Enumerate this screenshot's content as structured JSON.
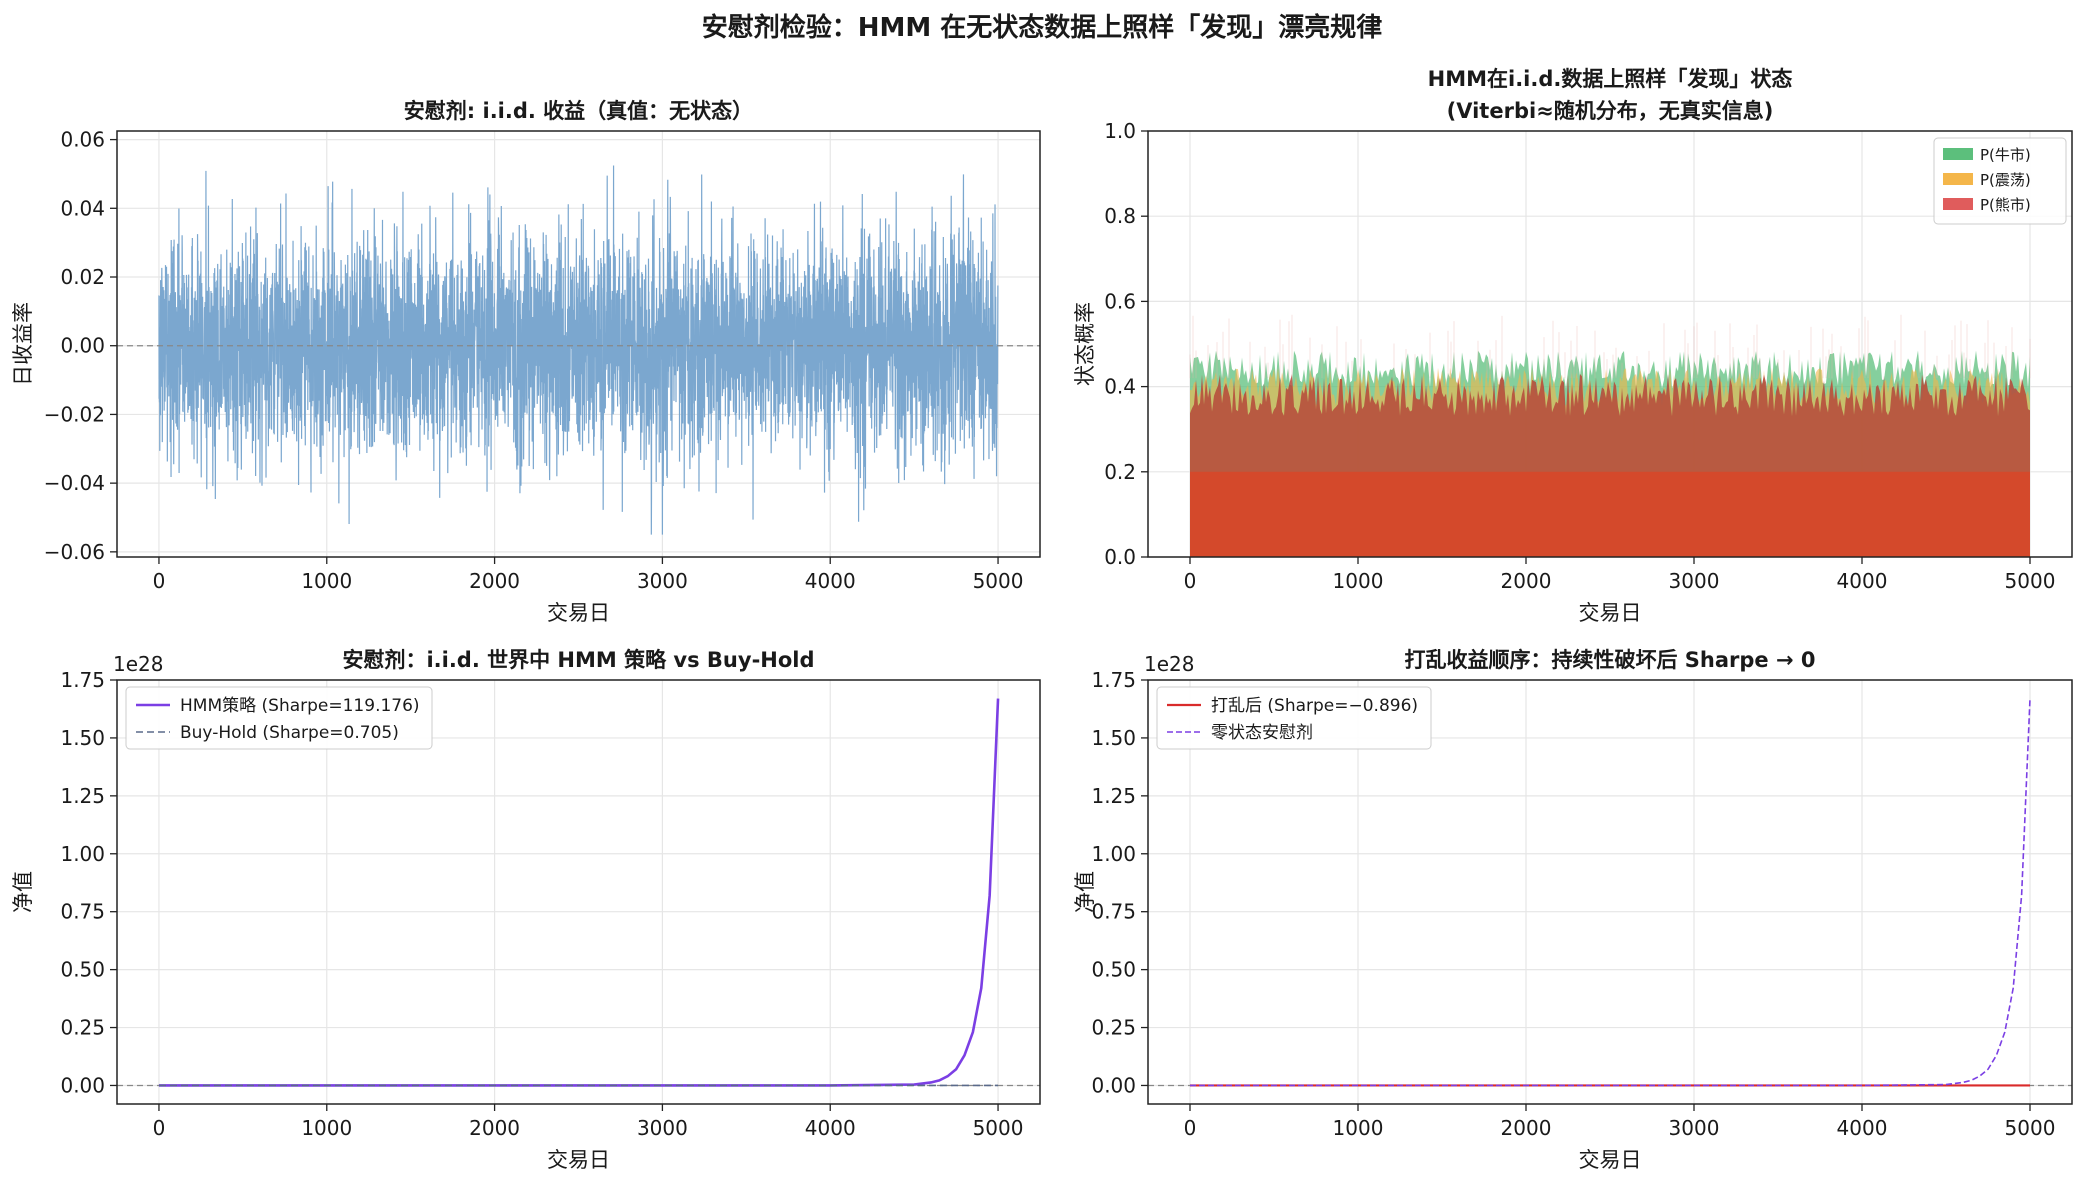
{
  "suptitle": "安慰剂检验：HMM 在无状态数据上照样「发现」漂亮规律",
  "colors": {
    "returns": "#7ba7cf",
    "bull": "#5cbf7c",
    "range": "#f4b64a",
    "bear": "#e05c5c",
    "hmm": "#7b3fe4",
    "buyhold": "#5a6a8a",
    "shuffled": "#d92b2b",
    "placebo": "#7b3fe4",
    "zero": "#888888",
    "grid": "#e6e6e6"
  },
  "chart_data": [
    {
      "type": "line",
      "title": "安慰剂: i.i.d. 收益（真值：无状态）",
      "xlabel": "交易日",
      "ylabel": "日收益率",
      "xlim": [
        -250,
        5250
      ],
      "ylim": [
        -0.0615,
        0.0625
      ],
      "xticks": [
        0,
        1000,
        2000,
        3000,
        4000,
        5000
      ],
      "xtick_labels": [
        "0",
        "1000",
        "2000",
        "3000",
        "4000",
        "5000"
      ],
      "yticks": [
        -0.06,
        -0.04,
        -0.02,
        0.0,
        0.02,
        0.04,
        0.06
      ],
      "ytick_labels": [
        "−0.06",
        "−0.04",
        "−0.02",
        "0.00",
        "0.02",
        "0.04",
        "0.06"
      ],
      "grid": true,
      "reference_line": 0.0,
      "series": [
        {
          "n_points": 5000,
          "std": 0.0158,
          "min": -0.055,
          "max": 0.056
        }
      ]
    },
    {
      "type": "area",
      "title_lines": [
        "HMM在i.i.d.数据上照样「发现」状态",
        "(Viterbi≈随机分布，无真实信息)"
      ],
      "xlabel": "交易日",
      "ylabel": "状态概率",
      "xlim": [
        -250,
        5250
      ],
      "ylim": [
        0,
        1.0
      ],
      "xticks": [
        0,
        1000,
        2000,
        3000,
        4000,
        5000
      ],
      "xtick_labels": [
        "0",
        "1000",
        "2000",
        "3000",
        "4000",
        "5000"
      ],
      "yticks": [
        0,
        0.2,
        0.4,
        0.6,
        0.8,
        1.0
      ],
      "ytick_labels": [
        "0.0",
        "0.2",
        "0.4",
        "0.6",
        "0.8",
        "1.0"
      ],
      "grid": true,
      "legend": {
        "position": "top-right",
        "items": [
          "P(牛市)",
          "P(震荡)",
          "P(熊市)"
        ]
      },
      "series": [
        {
          "name": "P(牛市)",
          "typical_level": 0.44
        },
        {
          "name": "P(震荡)",
          "typical_level": 0.4
        },
        {
          "name": "P(熊市)",
          "typical_level": 0.38,
          "solid_level": 0.2
        }
      ]
    },
    {
      "type": "line",
      "title": "安慰剂：i.i.d. 世界中 HMM 策略 vs Buy-Hold",
      "xlabel": "交易日",
      "ylabel": "净值",
      "offset_label": "1e28",
      "xlim": [
        -250,
        5250
      ],
      "ylim": [
        -0.08,
        1.75
      ],
      "xticks": [
        0,
        1000,
        2000,
        3000,
        4000,
        5000
      ],
      "xtick_labels": [
        "0",
        "1000",
        "2000",
        "3000",
        "4000",
        "5000"
      ],
      "yticks": [
        0,
        0.25,
        0.5,
        0.75,
        1.0,
        1.25,
        1.5,
        1.75
      ],
      "ytick_labels": [
        "0.00",
        "0.25",
        "0.50",
        "0.75",
        "1.00",
        "1.25",
        "1.50",
        "1.75"
      ],
      "grid": true,
      "reference_line": 0.0,
      "legend": {
        "position": "top-left"
      },
      "series": [
        {
          "name": "HMM策略 (Sharpe=119.176)",
          "style": "solid",
          "x": [
            0,
            4000,
            4500,
            4600,
            4650,
            4700,
            4750,
            4800,
            4850,
            4900,
            4950,
            5000
          ],
          "values": [
            0,
            0,
            0.004,
            0.013,
            0.022,
            0.04,
            0.07,
            0.13,
            0.23,
            0.42,
            0.82,
            1.67
          ]
        },
        {
          "name": "Buy-Hold (Sharpe=0.705)",
          "style": "dashed",
          "x": [
            0,
            5000
          ],
          "values": [
            0,
            0
          ]
        }
      ]
    },
    {
      "type": "line",
      "title": "打乱收益顺序：持续性破坏后 Sharpe → 0",
      "xlabel": "交易日",
      "ylabel": "净值",
      "offset_label": "1e28",
      "xlim": [
        -250,
        5250
      ],
      "ylim": [
        -0.08,
        1.75
      ],
      "xticks": [
        0,
        1000,
        2000,
        3000,
        4000,
        5000
      ],
      "xtick_labels": [
        "0",
        "1000",
        "2000",
        "3000",
        "4000",
        "5000"
      ],
      "yticks": [
        0,
        0.25,
        0.5,
        0.75,
        1.0,
        1.25,
        1.5,
        1.75
      ],
      "ytick_labels": [
        "0.00",
        "0.25",
        "0.50",
        "0.75",
        "1.00",
        "1.25",
        "1.50",
        "1.75"
      ],
      "grid": true,
      "reference_line": 0.0,
      "legend": {
        "position": "top-left"
      },
      "series": [
        {
          "name": "打乱后 (Sharpe=−0.896)",
          "style": "solid",
          "x": [
            0,
            5000
          ],
          "values": [
            0,
            0
          ]
        },
        {
          "name": "零状态安慰剂",
          "style": "dashed",
          "x": [
            0,
            4000,
            4500,
            4600,
            4650,
            4700,
            4750,
            4800,
            4850,
            4900,
            4950,
            5000
          ],
          "values": [
            0,
            0,
            0.004,
            0.013,
            0.022,
            0.04,
            0.07,
            0.13,
            0.23,
            0.42,
            0.82,
            1.67
          ]
        }
      ]
    }
  ]
}
